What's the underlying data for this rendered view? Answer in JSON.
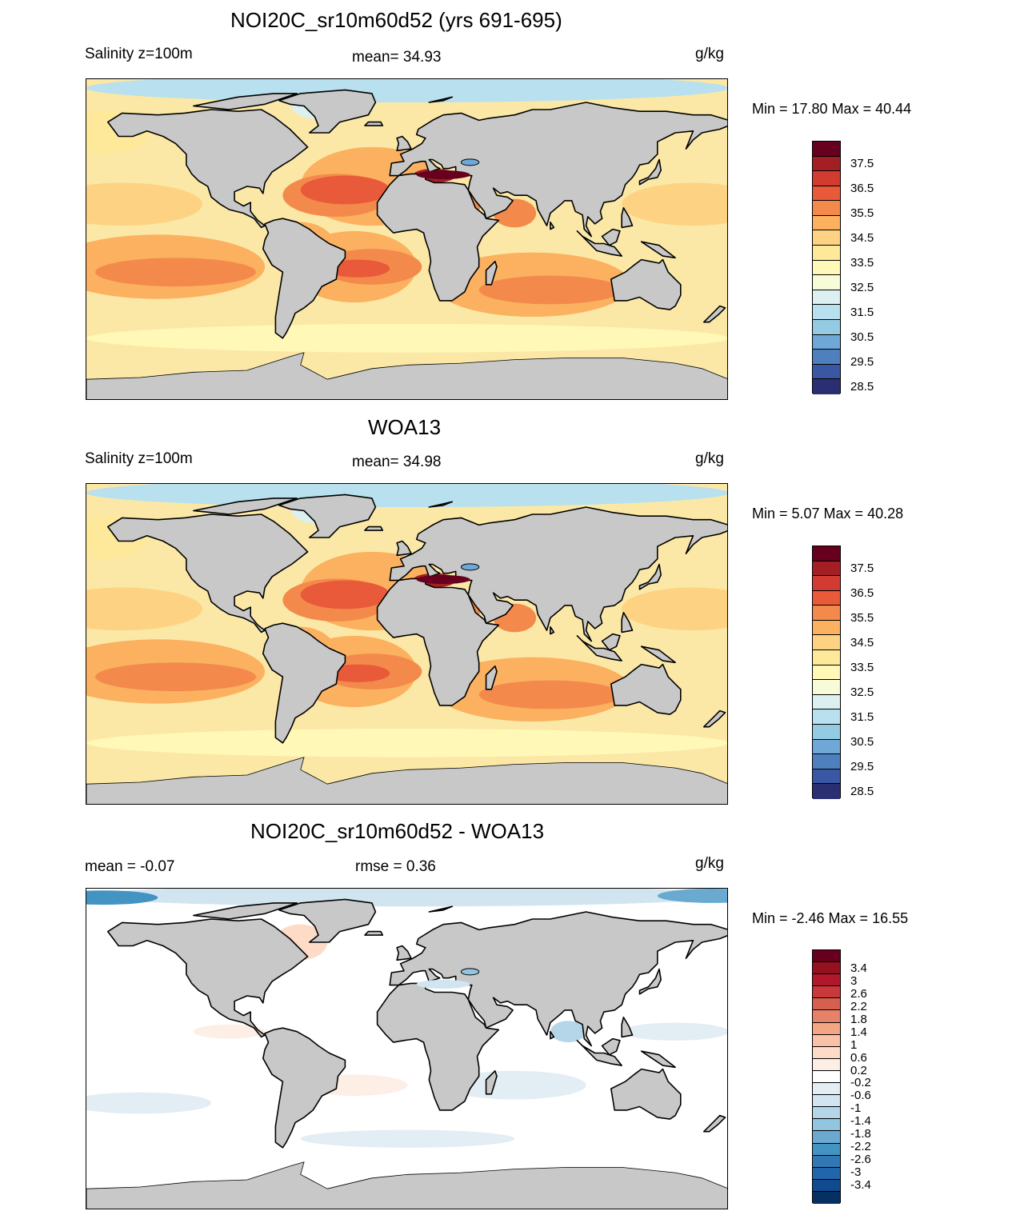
{
  "panels": [
    {
      "title": "NOI20C_sr10m60d52 (yrs 691-695)",
      "left_label": "Salinity z=100m",
      "center_label": "mean=  34.93",
      "units": "g/kg",
      "minmax": "Min =  17.80 Max =  40.44",
      "colorbar": {
        "colors": [
          "#67001f",
          "#a41f24",
          "#d13b30",
          "#e85a3a",
          "#f38a4b",
          "#fbb160",
          "#fdd383",
          "#fee99b",
          "#fff8b7",
          "#f7fbd7",
          "#dcf0f2",
          "#b9e0ee",
          "#94cbe3",
          "#6fa8d6",
          "#4f80be",
          "#3a57a3",
          "#2a2f72"
        ],
        "labels": [
          "37.5",
          "36.5",
          "35.5",
          "34.5",
          "33.5",
          "32.5",
          "31.5",
          "30.5",
          "29.5",
          "28.5"
        ]
      }
    },
    {
      "title": "WOA13",
      "left_label": "Salinity z=100m",
      "center_label": "mean=  34.98",
      "units": "g/kg",
      "minmax": "Min =   5.07 Max =  40.28",
      "colorbar": {
        "colors": [
          "#67001f",
          "#a41f24",
          "#d13b30",
          "#e85a3a",
          "#f38a4b",
          "#fbb160",
          "#fdd383",
          "#fee99b",
          "#fff8b7",
          "#f7fbd7",
          "#dcf0f2",
          "#b9e0ee",
          "#94cbe3",
          "#6fa8d6",
          "#4f80be",
          "#3a57a3",
          "#2a2f72"
        ],
        "labels": [
          "37.5",
          "36.5",
          "35.5",
          "34.5",
          "33.5",
          "32.5",
          "31.5",
          "30.5",
          "29.5",
          "28.5"
        ]
      }
    },
    {
      "title": "NOI20C_sr10m60d52 - WOA13",
      "left_label": "mean =  -0.07",
      "center_label": "rmse =   0.36",
      "units": "g/kg",
      "minmax": "Min =  -2.46 Max =  16.55",
      "colorbar": {
        "colors": [
          "#67001f",
          "#94121f",
          "#b2182b",
          "#c9383a",
          "#d6604d",
          "#e58267",
          "#f4a582",
          "#f9c2a8",
          "#fddbc7",
          "#fdefe5",
          "#ffffff",
          "#e2eef4",
          "#d1e5f0",
          "#b4d6e8",
          "#92c5de",
          "#6aaad0",
          "#4393c3",
          "#3178b4",
          "#2166ac",
          "#104b8f",
          "#053061"
        ],
        "labels": [
          "3.4",
          "3",
          "2.6",
          "2.2",
          "1.8",
          "1.4",
          "1",
          "0.6",
          "0.2",
          "-0.2",
          "-0.6",
          "-1",
          "-1.4",
          "-1.8",
          "-2.2",
          "-2.6",
          "-3",
          "-3.4"
        ]
      }
    }
  ],
  "map_colors": {
    "land": "#c8c8c8",
    "salinity_background": "#fbe8a6"
  }
}
